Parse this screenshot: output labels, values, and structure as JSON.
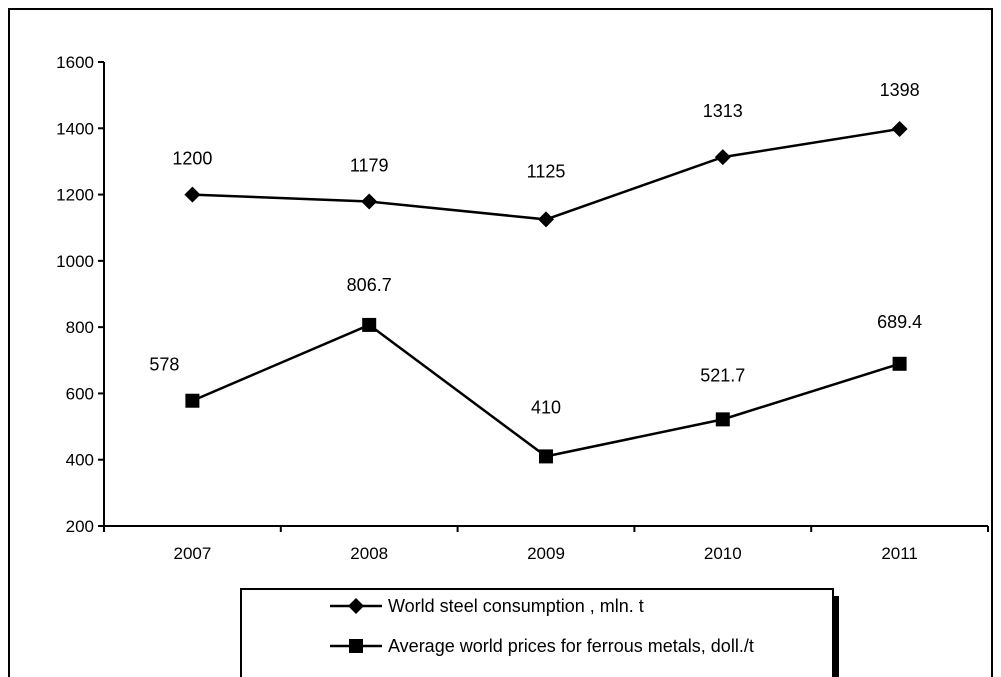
{
  "chart_data": {
    "type": "line",
    "categories": [
      "2007",
      "2008",
      "2009",
      "2010",
      "2011"
    ],
    "series": [
      {
        "name": "World steel consumption , mln. t",
        "values": [
          1200,
          1179,
          1125,
          1313,
          1398
        ],
        "labels": [
          "1200",
          "1179",
          "1125",
          "1313",
          "1398"
        ],
        "marker": "diamond"
      },
      {
        "name": "Average world prices for ferrous metals, doll./t",
        "values": [
          578,
          806.7,
          410,
          521.7,
          689.4
        ],
        "labels": [
          "578",
          "806.7",
          "410",
          "521.7",
          "689.4"
        ],
        "marker": "square"
      }
    ],
    "y_ticks": [
      "200",
      "400",
      "600",
      "800",
      "1000",
      "1200",
      "1400",
      "1600"
    ],
    "ylim": [
      200,
      1600
    ],
    "grid": false,
    "legend_position": "bottom",
    "colors": {
      "line": "#000000",
      "background": "#ffffff"
    }
  }
}
